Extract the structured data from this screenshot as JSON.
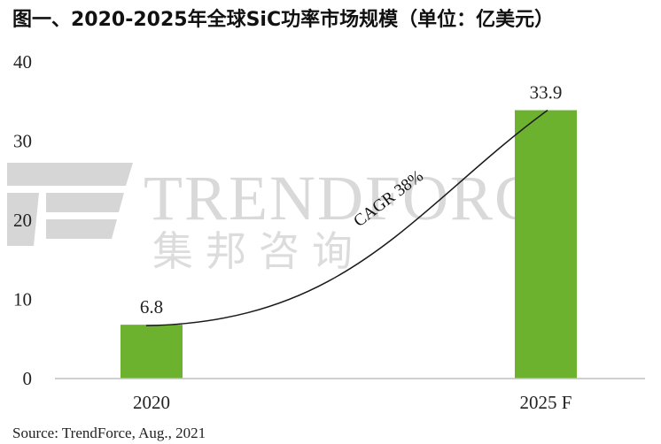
{
  "chart_data": {
    "type": "bar",
    "title": "图一、2020-2025年全球SiC功率市场规模（单位：亿美元）",
    "xlabel": "",
    "ylabel": "",
    "categories": [
      "2020",
      "2025 F"
    ],
    "values": [
      6.8,
      33.9
    ],
    "value_labels": [
      "6.8",
      "33.9"
    ],
    "ylim": [
      0,
      40
    ],
    "yticks": [
      0,
      10,
      20,
      30,
      40
    ],
    "ytick_labels": [
      "0",
      "10",
      "20",
      "30",
      "40"
    ],
    "grid": false,
    "legend": "none",
    "annotation": "CAGR 38%",
    "source": "Source: TrendForce, Aug., 2021",
    "watermark": {
      "en": "TRENDFORCE",
      "cn": "集邦咨询"
    },
    "colors": {
      "bar": "#6cb22f",
      "axis": "#bfbfbf",
      "curve": "#1a1a1a"
    }
  }
}
